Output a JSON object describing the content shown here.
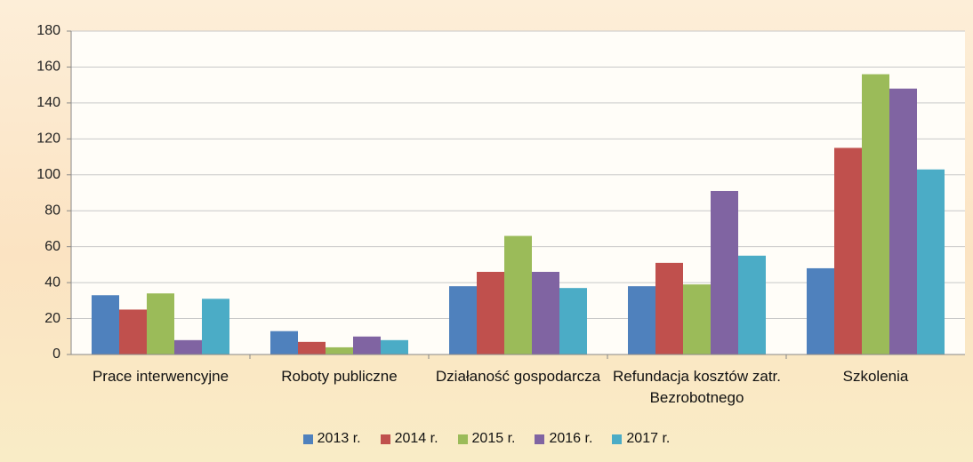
{
  "chart_data": {
    "type": "bar",
    "categories": [
      "Prace interwencyjne",
      "Roboty publiczne",
      "Działaność gospodarcza",
      "Refundacja kosztów zatr. Bezrobotnego",
      "Szkolenia"
    ],
    "series": [
      {
        "name": "2013 r.",
        "color": "#4f81bd",
        "values": [
          33,
          13,
          38,
          38,
          48
        ]
      },
      {
        "name": "2014 r.",
        "color": "#c0504d",
        "values": [
          25,
          7,
          46,
          51,
          115
        ]
      },
      {
        "name": "2015 r.",
        "color": "#9bbb59",
        "values": [
          34,
          4,
          66,
          39,
          156
        ]
      },
      {
        "name": "2016 r.",
        "color": "#8064a2",
        "values": [
          8,
          10,
          46,
          91,
          148
        ]
      },
      {
        "name": "2017 r.",
        "color": "#4bacc6",
        "values": [
          31,
          8,
          37,
          55,
          103
        ]
      }
    ],
    "ylim": [
      0,
      180
    ],
    "yticks": [
      0,
      20,
      40,
      60,
      80,
      100,
      120,
      140,
      160,
      180
    ],
    "grid": true,
    "legend": "bottom"
  }
}
